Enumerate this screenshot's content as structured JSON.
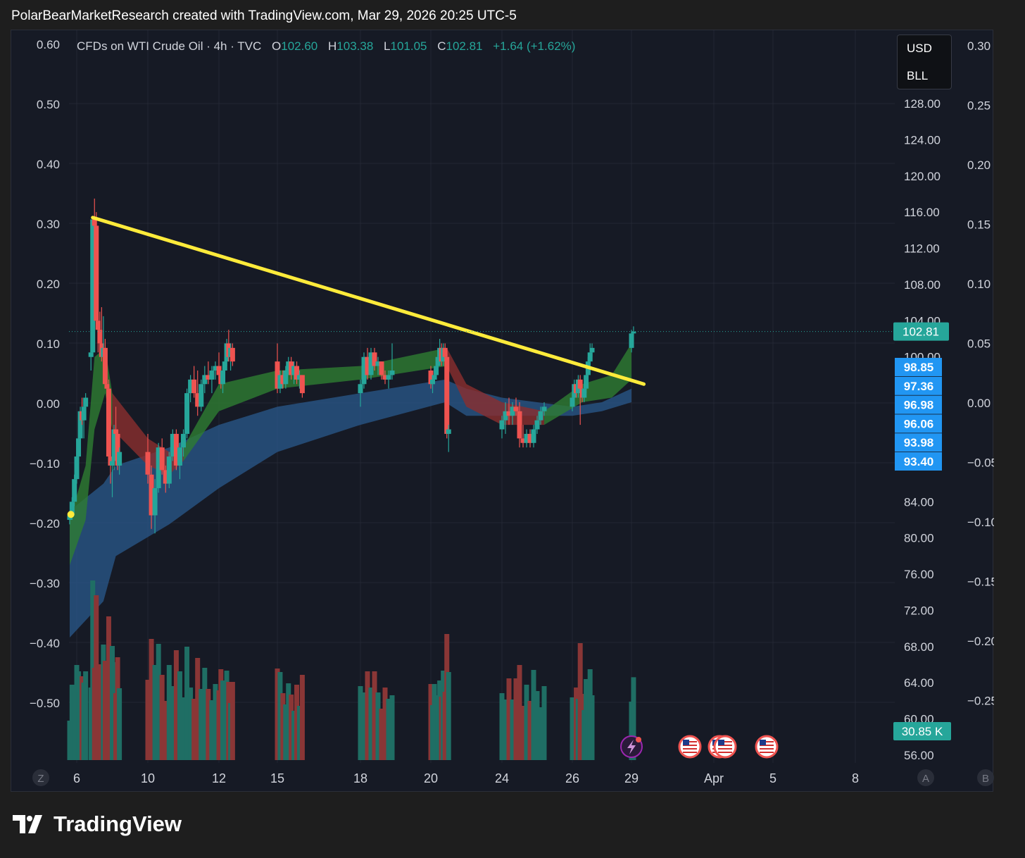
{
  "header": {
    "text": "PolarBearMarketResearch created with TradingView.com, Mar 29, 2026 20:25 UTC-5"
  },
  "legend": {
    "symbol": "CFDs on WTI Crude Oil · 4h · TVC",
    "o_label": "O",
    "o_value": "102.60",
    "h_label": "H",
    "h_value": "103.38",
    "l_label": "L",
    "l_value": "101.05",
    "c_label": "C",
    "c_value": "102.81",
    "change": "+1.64 (+1.62%)"
  },
  "currency_box": {
    "line1": "USD",
    "line2": "BLL"
  },
  "brand": {
    "name": "TradingView"
  },
  "colors": {
    "up": "#26a69a",
    "down": "#ef5350",
    "trendline": "#ffeb3b",
    "ribbon_green": "#2e7d32",
    "ribbon_red": "#8b2e2e",
    "ribbon_blue": "#2a5a8c",
    "tag_blue": "#2196f3",
    "tag_teal": "#26a69a"
  },
  "chart_data": {
    "type": "candlestick",
    "symbol": "CFDs on WTI Crude Oil",
    "interval": "4h",
    "x_ticks": [
      "6",
      "10",
      "12",
      "15",
      "18",
      "20",
      "24",
      "26",
      "29",
      "Apr",
      "5",
      "8"
    ],
    "price_axis_ticks": [
      "128.00",
      "124.00",
      "120.00",
      "116.00",
      "112.00",
      "108.00",
      "104.00",
      "100.00",
      "84.00",
      "80.00",
      "76.00",
      "72.00",
      "68.00",
      "64.00",
      "60.00",
      "56.00"
    ],
    "left_axis_ticks": [
      "0.60",
      "0.50",
      "0.40",
      "0.30",
      "0.20",
      "0.10",
      "0.00",
      "−0.10",
      "−0.20",
      "−0.30",
      "−0.40",
      "−0.50"
    ],
    "far_right_axis_ticks": [
      "0.30",
      "0.25",
      "0.20",
      "0.15",
      "0.10",
      "0.05",
      "0.00",
      "−0.05",
      "−0.10",
      "−0.15",
      "−0.20",
      "−0.25"
    ],
    "price_ylim": [
      55,
      135
    ],
    "current_price": "102.81",
    "indicator_tags": [
      "98.85",
      "97.36",
      "96.98",
      "96.06",
      "93.98",
      "93.40"
    ],
    "volume_tag": "30.85 K",
    "corner_labels": {
      "z": "Z",
      "a": "A",
      "b": "B"
    },
    "trendline": {
      "start": [
        6.9,
        115.4
      ],
      "end": [
        29.6,
        97.0
      ]
    },
    "candles": [
      [
        5.7,
        82.0,
        83.0,
        81.5,
        82.5
      ],
      [
        5.8,
        82.5,
        84.5,
        82.0,
        84.0
      ],
      [
        5.9,
        84.0,
        87.0,
        83.5,
        86.5
      ],
      [
        6.0,
        86.5,
        89.5,
        86.0,
        89.0
      ],
      [
        6.1,
        89.0,
        92.0,
        87.5,
        91.0
      ],
      [
        6.2,
        91.0,
        94.5,
        90.5,
        94.0
      ],
      [
        6.3,
        94.0,
        95.5,
        92.5,
        93.0
      ],
      [
        6.4,
        93.0,
        95.0,
        91.0,
        94.5
      ],
      [
        6.5,
        94.5,
        96.0,
        93.5,
        95.5
      ],
      [
        6.8,
        100.0,
        101.0,
        98.5,
        100.5
      ],
      [
        6.9,
        100.5,
        115.5,
        100.0,
        115.2
      ],
      [
        7.0,
        115.2,
        117.5,
        114.0,
        114.5
      ],
      [
        7.1,
        114.5,
        116.0,
        103.5,
        104.0
      ],
      [
        7.2,
        104.0,
        106.5,
        100.5,
        103.0
      ],
      [
        7.3,
        103.0,
        105.0,
        100.5,
        101.5
      ],
      [
        7.4,
        101.5,
        105.5,
        99.5,
        100.0
      ],
      [
        7.5,
        100.0,
        104.5,
        99.0,
        101.0
      ],
      [
        7.6,
        101.0,
        102.0,
        96.5,
        97.0
      ],
      [
        7.7,
        97.0,
        99.0,
        95.5,
        96.5
      ],
      [
        7.8,
        96.5,
        97.5,
        88.5,
        89.0
      ],
      [
        7.9,
        89.0,
        91.5,
        86.0,
        88.0
      ],
      [
        8.0,
        88.0,
        89.5,
        84.5,
        88.5
      ],
      [
        8.1,
        88.5,
        92.5,
        87.5,
        92.0
      ],
      [
        8.2,
        92.0,
        94.5,
        91.0,
        91.5
      ],
      [
        8.3,
        91.5,
        92.0,
        87.5,
        88.0
      ],
      [
        8.4,
        88.0,
        90.0,
        87.0,
        89.5
      ],
      [
        10.0,
        89.5,
        91.5,
        86.0,
        87.0
      ],
      [
        10.1,
        87.0,
        88.0,
        81.0,
        82.5
      ],
      [
        10.2,
        82.5,
        86.5,
        80.5,
        85.5
      ],
      [
        10.3,
        85.5,
        90.5,
        85.0,
        90.0
      ],
      [
        10.4,
        90.0,
        91.0,
        87.0,
        87.5
      ],
      [
        10.5,
        87.5,
        88.0,
        85.0,
        86.0
      ],
      [
        10.6,
        86.0,
        89.5,
        85.5,
        89.0
      ],
      [
        10.7,
        89.0,
        92.0,
        88.5,
        91.5
      ],
      [
        10.8,
        91.5,
        92.0,
        87.5,
        88.0
      ],
      [
        10.9,
        88.0,
        90.5,
        86.5,
        90.0
      ],
      [
        11.0,
        90.0,
        92.0,
        89.0,
        91.5
      ],
      [
        11.1,
        91.5,
        96.5,
        91.0,
        96.0
      ],
      [
        11.2,
        96.0,
        98.0,
        95.0,
        97.5
      ],
      [
        11.3,
        97.5,
        99.0,
        95.5,
        96.0
      ],
      [
        11.4,
        96.0,
        98.5,
        93.5,
        94.5
      ],
      [
        11.5,
        94.5,
        97.5,
        94.0,
        97.0
      ],
      [
        11.6,
        97.0,
        99.0,
        96.0,
        98.0
      ],
      [
        11.7,
        98.0,
        99.5,
        97.0,
        97.5
      ],
      [
        11.8,
        97.5,
        99.0,
        96.0,
        98.5
      ],
      [
        11.9,
        98.5,
        99.5,
        97.5,
        99.0
      ],
      [
        12.0,
        99.0,
        100.5,
        97.5,
        98.0
      ],
      [
        12.1,
        98.0,
        99.0,
        96.5,
        97.0
      ],
      [
        12.2,
        97.0,
        99.0,
        96.0,
        98.5
      ],
      [
        12.3,
        98.5,
        100.0,
        98.0,
        99.5
      ],
      [
        12.4,
        99.5,
        102.0,
        99.0,
        101.5
      ],
      [
        12.5,
        101.5,
        103.0,
        99.5,
        100.0
      ],
      [
        12.6,
        100.0,
        101.5,
        98.5,
        101.0
      ],
      [
        12.7,
        101.0,
        101.5,
        99.0,
        99.5
      ],
      [
        15.0,
        99.5,
        101.5,
        96.0,
        96.5
      ],
      [
        15.1,
        96.5,
        98.5,
        96.0,
        98.0
      ],
      [
        15.2,
        98.0,
        98.5,
        96.5,
        97.0
      ],
      [
        15.3,
        97.0,
        99.0,
        96.5,
        98.5
      ],
      [
        15.4,
        98.5,
        100.0,
        98.0,
        99.5
      ],
      [
        15.5,
        99.5,
        100.0,
        97.5,
        98.0
      ],
      [
        15.6,
        98.0,
        99.5,
        97.0,
        99.0
      ],
      [
        15.7,
        99.0,
        99.5,
        97.0,
        97.5
      ],
      [
        15.8,
        97.5,
        98.5,
        96.5,
        98.0
      ],
      [
        15.9,
        98.0,
        98.0,
        95.5,
        96.0
      ],
      [
        18.0,
        96.0,
        97.5,
        94.5,
        97.0
      ],
      [
        18.1,
        97.0,
        100.5,
        96.5,
        100.0
      ],
      [
        18.2,
        100.0,
        101.0,
        97.5,
        98.0
      ],
      [
        18.3,
        98.0,
        101.0,
        97.5,
        100.5
      ],
      [
        18.4,
        100.5,
        101.0,
        98.5,
        99.0
      ],
      [
        18.5,
        99.0,
        100.0,
        98.0,
        99.5
      ],
      [
        18.6,
        99.5,
        99.5,
        97.5,
        98.0
      ],
      [
        18.7,
        98.0,
        98.5,
        97.0,
        97.5
      ],
      [
        18.8,
        97.5,
        98.5,
        96.5,
        98.0
      ],
      [
        18.9,
        98.0,
        101.5,
        97.5,
        98.5
      ],
      [
        20.0,
        98.5,
        99.0,
        96.5,
        97.0
      ],
      [
        20.1,
        97.0,
        98.0,
        96.0,
        97.5
      ],
      [
        20.2,
        97.5,
        98.5,
        97.0,
        98.0
      ],
      [
        20.3,
        98.0,
        99.5,
        97.5,
        99.0
      ],
      [
        20.4,
        99.0,
        100.5,
        98.5,
        100.0
      ],
      [
        20.5,
        100.0,
        102.0,
        99.5,
        101.0
      ],
      [
        20.6,
        101.0,
        101.5,
        99.0,
        99.5
      ],
      [
        20.7,
        99.5,
        101.5,
        99.0,
        101.0
      ],
      [
        20.8,
        101.0,
        101.5,
        99.5,
        100.0
      ],
      [
        20.9,
        100.0,
        100.5,
        91.0,
        91.5
      ],
      [
        21.0,
        91.5,
        92.5,
        89.5,
        92.0
      ],
      [
        24.0,
        92.0,
        93.5,
        91.0,
        93.0
      ],
      [
        24.1,
        93.0,
        95.0,
        91.5,
        94.0
      ],
      [
        24.2,
        94.0,
        95.5,
        92.5,
        93.5
      ],
      [
        24.3,
        93.5,
        95.0,
        92.5,
        94.5
      ],
      [
        24.4,
        94.5,
        95.5,
        93.5,
        94.0
      ],
      [
        24.5,
        94.0,
        95.0,
        90.0,
        91.0
      ],
      [
        24.6,
        91.0,
        92.5,
        90.0,
        90.5
      ],
      [
        24.7,
        90.5,
        92.0,
        90.0,
        91.5
      ],
      [
        24.8,
        91.5,
        92.0,
        90.0,
        90.5
      ],
      [
        24.9,
        90.5,
        92.5,
        90.0,
        92.0
      ],
      [
        25.0,
        92.0,
        93.5,
        91.5,
        93.0
      ],
      [
        25.1,
        93.0,
        94.5,
        92.5,
        94.0
      ],
      [
        25.2,
        94.0,
        95.0,
        93.5,
        94.5
      ],
      [
        26.0,
        94.5,
        96.0,
        94.0,
        95.5
      ],
      [
        26.1,
        95.5,
        97.5,
        95.0,
        97.0
      ],
      [
        26.2,
        97.0,
        97.5,
        95.5,
        96.0
      ],
      [
        26.3,
        96.0,
        98.0,
        95.5,
        97.5
      ],
      [
        26.4,
        97.5,
        98.0,
        92.5,
        96.5
      ],
      [
        26.5,
        96.5,
        97.0,
        95.0,
        95.5
      ],
      [
        26.6,
        95.5,
        97.0,
        95.0,
        96.5
      ],
      [
        26.7,
        96.5,
        98.5,
        96.0,
        98.0
      ],
      [
        26.8,
        98.0,
        100.0,
        97.5,
        99.5
      ],
      [
        26.9,
        99.5,
        101.5,
        99.0,
        100.5
      ],
      [
        27.0,
        100.5,
        101.5,
        100.0,
        101.0
      ],
      [
        29.0,
        101.0,
        103.0,
        100.5,
        102.6
      ],
      [
        29.1,
        102.6,
        103.38,
        101.05,
        102.81
      ]
    ]
  }
}
